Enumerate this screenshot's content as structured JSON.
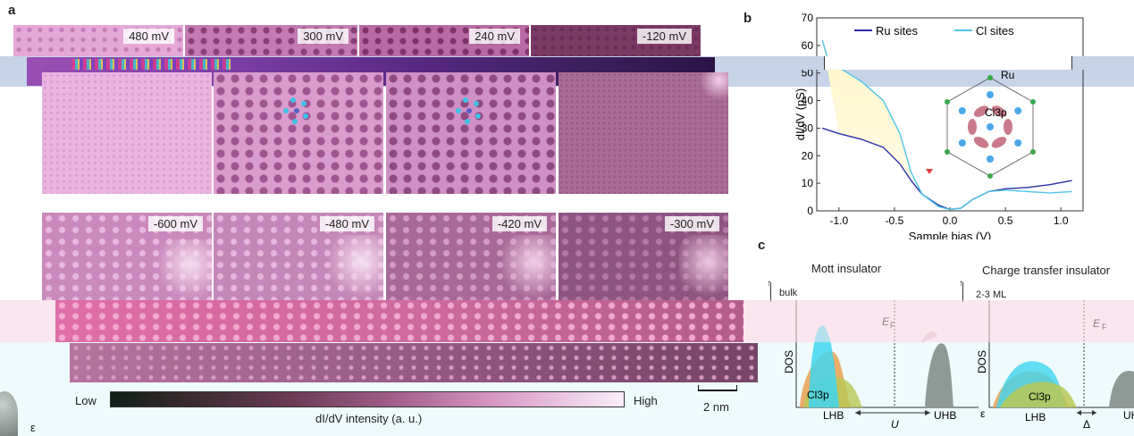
{
  "panel_a": {
    "letter": "a",
    "top_row_voltages": [
      "480 mV",
      "300 mV",
      "240 mV",
      "-120 mV"
    ],
    "bottom_row_voltages": [
      "-600 mV",
      "-480 mV",
      "-420 mV",
      "-300 mV"
    ],
    "colorbar": {
      "low": "Low",
      "high": "High",
      "label": "dI/dV  intensity (a. u.)"
    },
    "scalebar": "2 nm"
  },
  "panel_b": {
    "letter": "b",
    "legend": [
      "Ru sites",
      "Cl sites"
    ],
    "inset_labels": {
      "cl": "Cl",
      "ru": "Ru",
      "cl3p": "Cl3p"
    },
    "chart_data": {
      "type": "line",
      "xlabel": "Sample bias (V)",
      "ylabel": "dI/dV (pS)",
      "xlim": [
        -1.2,
        1.2
      ],
      "ylim": [
        0,
        70
      ],
      "xticks": [
        "-1.0",
        "-0.5",
        "0.0",
        "0.5",
        "1.0"
      ],
      "yticks": [
        "0",
        "10",
        "20",
        "30",
        "40",
        "50",
        "60",
        "70"
      ],
      "series": [
        {
          "name": "Ru sites",
          "color": "#2b2fa8",
          "x": [
            -1.15,
            -1.0,
            -0.8,
            -0.6,
            -0.45,
            -0.35,
            -0.25,
            -0.1,
            0.0,
            0.1,
            0.2,
            0.35,
            0.5,
            0.7,
            0.9,
            1.1
          ],
          "y": [
            30,
            28,
            26,
            23,
            17,
            11,
            6,
            2,
            0.5,
            1,
            4,
            7,
            8,
            8.5,
            9.5,
            11
          ]
        },
        {
          "name": "Cl sites",
          "color": "#4fc4e8",
          "x": [
            -1.15,
            -1.1,
            -1.0,
            -0.8,
            -0.6,
            -0.45,
            -0.35,
            -0.25,
            -0.1,
            0.0,
            0.1,
            0.2,
            0.35,
            0.5,
            0.7,
            0.9,
            1.1
          ],
          "y": [
            62,
            55,
            52,
            47,
            40,
            28,
            14,
            6,
            1.5,
            0.5,
            1,
            4,
            7,
            7.5,
            7,
            6.5,
            7
          ]
        }
      ]
    }
  },
  "panel_c": {
    "letter": "c",
    "mott_title": "Mott insulator",
    "ct_title": "Charge transfer insulator",
    "bulk_label": "bulk",
    "ml_label": "2-3 ML",
    "ef": "E",
    "ef_sub": "F",
    "dos": "DOS",
    "cl3p": "Cl3p",
    "lhb": "LHB",
    "uhb": "UHB",
    "u": "U",
    "eps": "ε",
    "delta": "Δ"
  },
  "colors": {
    "tile_light": "#e2a6d6",
    "tile_mid": "#b86aa6",
    "tile_dark": "#7a3868",
    "ru_line": "#2b2fa8",
    "cl_line": "#4fc4e8",
    "cyan_peak": "#3fd6f0",
    "grey_peak": "#8f9a97",
    "cl3p_fill": "#e6b040"
  }
}
